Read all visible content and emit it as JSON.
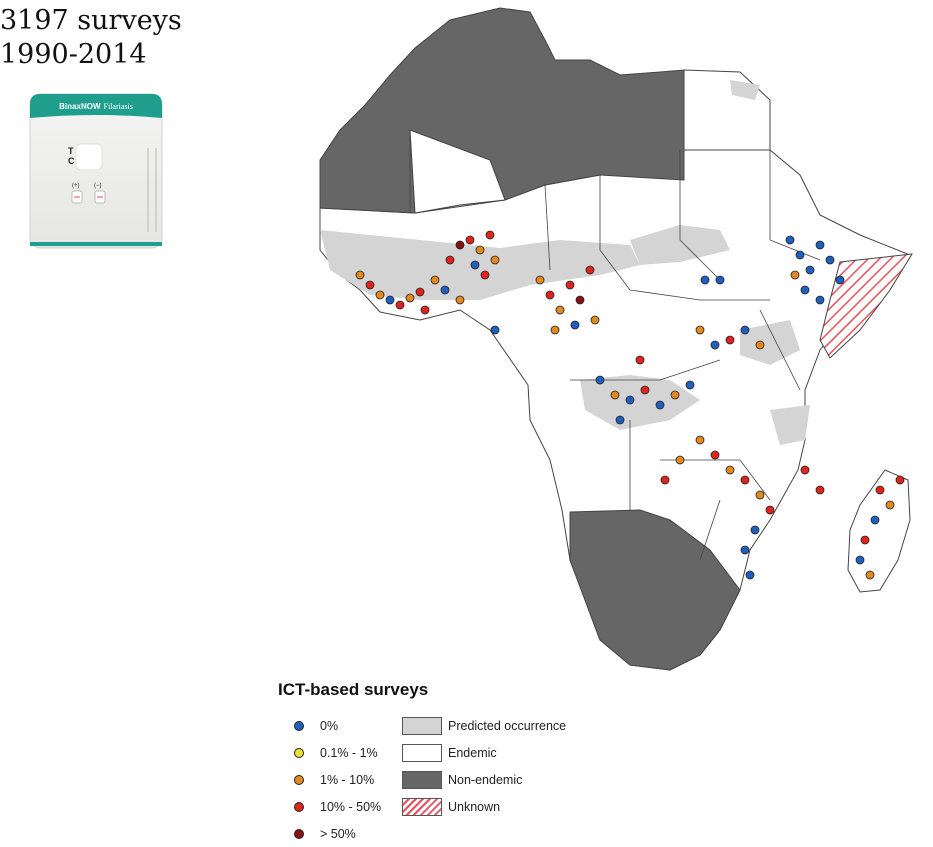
{
  "header": {
    "survey_count": "3197 surveys",
    "period": "1990-2014"
  },
  "test_card": {
    "brand": "BinaxNOW",
    "product": "Filariasis",
    "t_label": "T",
    "c_label": "C",
    "plus_label": "(+)",
    "minus_label": "(−)",
    "colors": {
      "teal": "#1f9e8e",
      "body": "#f2f2f0",
      "red_mark": "#d9534f"
    }
  },
  "map": {
    "colors": {
      "predicted": "#d4d4d4",
      "endemic": "#ffffff",
      "non_endemic": "#666666",
      "unknown_stripe": "#e8505b",
      "border": "#444444"
    }
  },
  "legend": {
    "title": "ICT-based surveys",
    "prevalence": [
      {
        "label": "0%",
        "color": "#1f5fbf"
      },
      {
        "label": "0.1% - 1%",
        "color": "#f2e22a"
      },
      {
        "label": "1% - 10%",
        "color": "#e38a1e"
      },
      {
        "label": "10% - 50%",
        "color": "#e0231c"
      },
      {
        "label": "> 50%",
        "color": "#8b1010"
      }
    ],
    "status": [
      {
        "label": "Predicted occurrence",
        "fill": "#d4d4d4",
        "pattern": "solid"
      },
      {
        "label": "Endemic",
        "fill": "#ffffff",
        "pattern": "solid"
      },
      {
        "label": "Non-endemic",
        "fill": "#666666",
        "pattern": "solid"
      },
      {
        "label": "Unknown",
        "fill": "#ffffff",
        "pattern": "hatched"
      }
    ]
  }
}
